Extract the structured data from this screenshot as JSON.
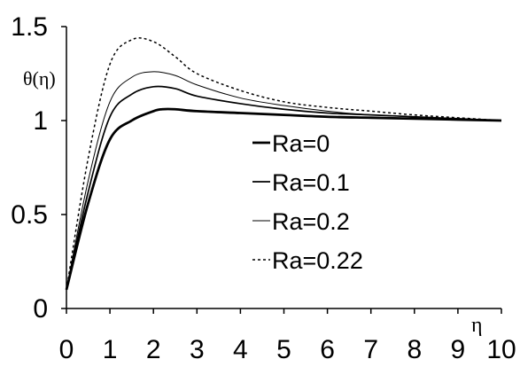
{
  "chart_data": {
    "type": "line",
    "ylabel": "θ(η)",
    "xlabel": "η",
    "xlim": [
      0,
      10
    ],
    "ylim": [
      0,
      1.5
    ],
    "xticks": [
      "0",
      "1",
      "2",
      "3",
      "4",
      "5",
      "6",
      "7",
      "8",
      "9",
      "10"
    ],
    "yticks": [
      "0",
      "0.5",
      "1",
      "1.5"
    ],
    "grid": false,
    "legend_position": "center-right",
    "series": [
      {
        "name": "Ra=0",
        "style": "thick-solid",
        "x": [
          0,
          0.5,
          1.0,
          1.5,
          2.0,
          2.2,
          2.5,
          3.0,
          4.0,
          5.0,
          6.0,
          7.0,
          8.0,
          9.0,
          10.0
        ],
        "y": [
          0.1,
          0.56,
          0.9,
          1.0,
          1.05,
          1.06,
          1.06,
          1.05,
          1.04,
          1.03,
          1.02,
          1.015,
          1.01,
          1.005,
          1.0
        ]
      },
      {
        "name": "Ra=0.1",
        "style": "medium-solid",
        "x": [
          0,
          0.5,
          1.0,
          1.5,
          2.0,
          2.5,
          3.0,
          4.0,
          5.0,
          6.0,
          7.0,
          8.0,
          9.0,
          10.0
        ],
        "y": [
          0.1,
          0.62,
          1.02,
          1.14,
          1.18,
          1.17,
          1.13,
          1.09,
          1.06,
          1.04,
          1.03,
          1.02,
          1.01,
          1.0
        ]
      },
      {
        "name": "Ra=0.2",
        "style": "thin-solid",
        "x": [
          0,
          0.5,
          1.0,
          1.5,
          2.0,
          2.5,
          3.0,
          4.0,
          5.0,
          6.0,
          7.0,
          8.0,
          9.0,
          10.0
        ],
        "y": [
          0.1,
          0.68,
          1.1,
          1.23,
          1.26,
          1.24,
          1.19,
          1.12,
          1.08,
          1.05,
          1.03,
          1.02,
          1.01,
          1.0
        ]
      },
      {
        "name": "Ra=0.22",
        "style": "dotted",
        "x": [
          0,
          0.5,
          1.0,
          1.5,
          2.0,
          2.5,
          3.0,
          4.0,
          5.0,
          6.0,
          7.0,
          8.0,
          9.0,
          10.0
        ],
        "y": [
          0.1,
          0.8,
          1.3,
          1.43,
          1.42,
          1.34,
          1.25,
          1.16,
          1.1,
          1.07,
          1.05,
          1.03,
          1.015,
          1.0
        ]
      }
    ],
    "colors": {
      "axis": "#000000",
      "line": "#000000",
      "background": "#ffffff"
    }
  }
}
